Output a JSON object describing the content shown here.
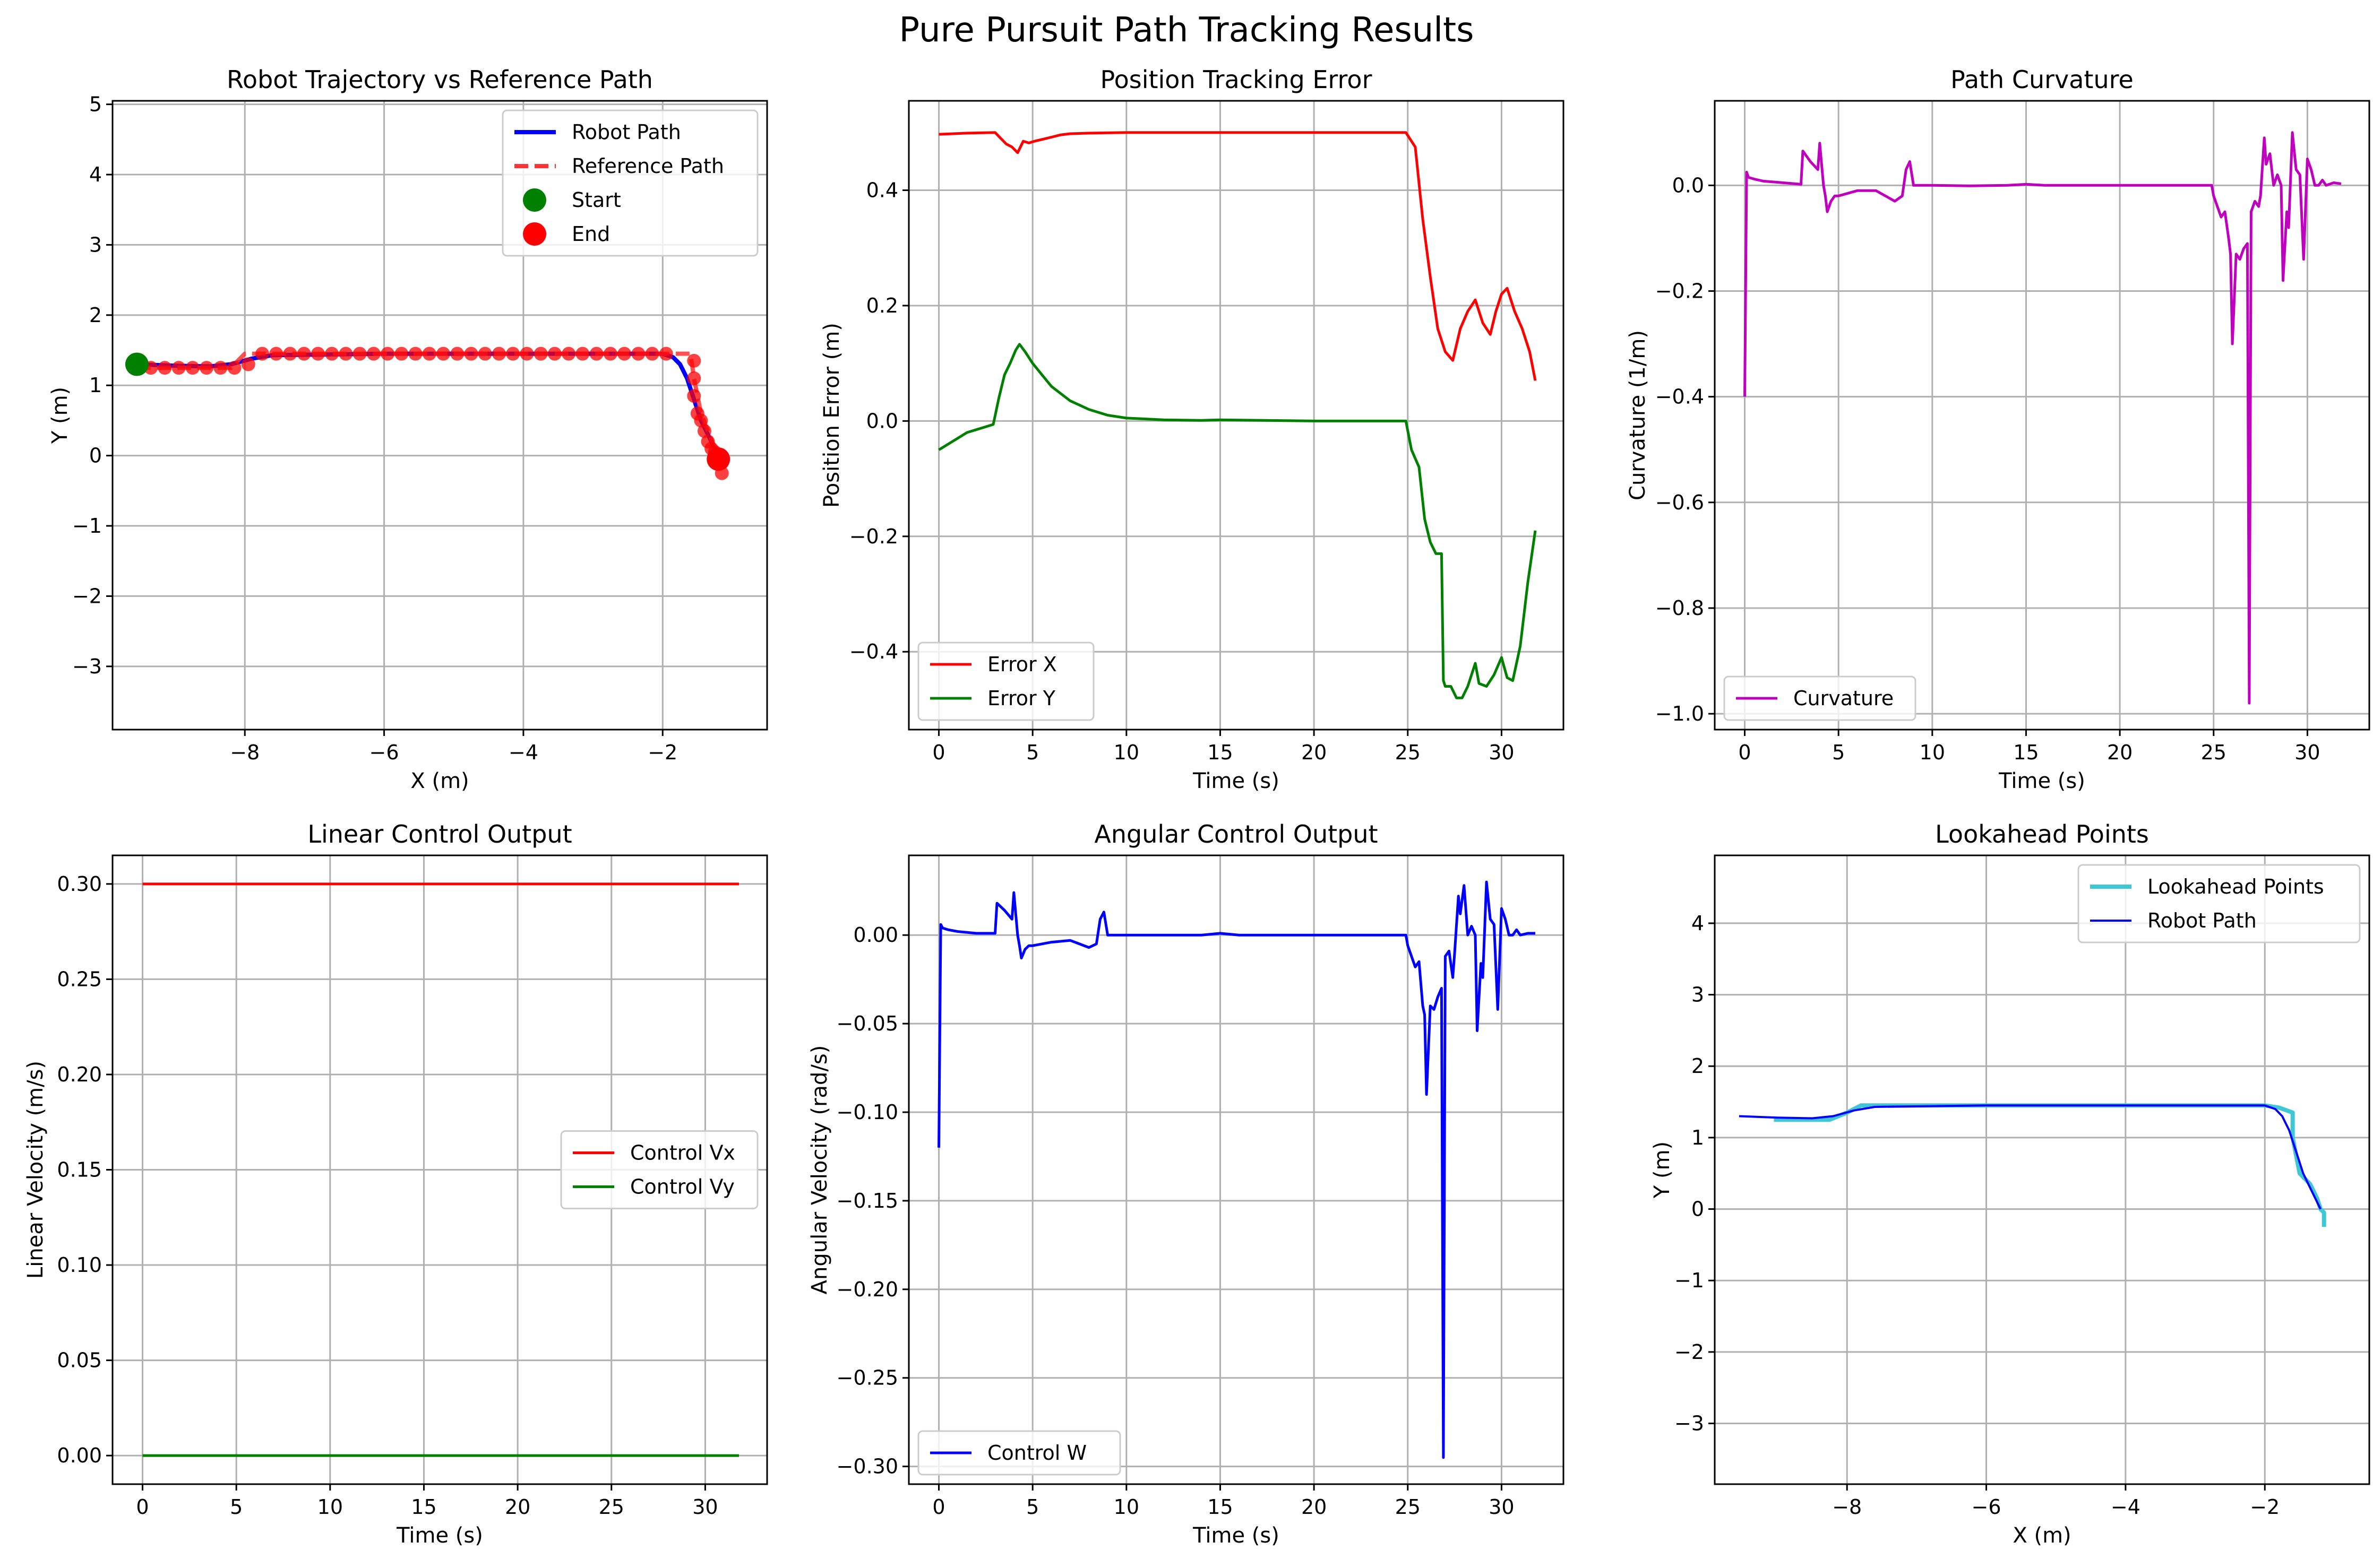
{
  "figure": {
    "title": "Pure Pursuit Path Tracking Results"
  },
  "colors": {
    "red": "#ff0000",
    "green": "#008000",
    "blue": "#0000ff",
    "magenta": "#bf00bf",
    "cyan": "#40c7d6",
    "refred": "#ff3333"
  },
  "chart_data": [
    {
      "id": "trajectory",
      "type": "line",
      "title": "Robot Trajectory vs Reference Path",
      "xlabel": "X (m)",
      "ylabel": "Y (m)",
      "xlim": [
        -9.9,
        -0.5
      ],
      "ylim": [
        -3.9,
        5.05
      ],
      "xticks": [
        -8,
        -6,
        -4,
        -2
      ],
      "xtick_labels": [
        "−8",
        "−6",
        "−4",
        "−2"
      ],
      "yticks": [
        -3,
        -2,
        -1,
        0,
        1,
        2,
        3,
        4,
        5
      ],
      "ytick_labels": [
        "−3",
        "−2",
        "−1",
        "0",
        "1",
        "2",
        "3",
        "4",
        "5"
      ],
      "grid": true,
      "legend": "top-right",
      "series": [
        {
          "name": "Robot Path",
          "style": "line",
          "color": "#0000ff",
          "width": 8,
          "x": [
            -9.55,
            -9.0,
            -8.5,
            -8.2,
            -7.9,
            -7.6,
            -6.0,
            -4.0,
            -2.5,
            -2.0,
            -1.85,
            -1.75,
            -1.65,
            -1.55,
            -1.45,
            -1.35,
            -1.25,
            -1.2
          ],
          "y": [
            1.3,
            1.28,
            1.27,
            1.3,
            1.38,
            1.43,
            1.45,
            1.45,
            1.45,
            1.45,
            1.4,
            1.3,
            1.1,
            0.8,
            0.5,
            0.3,
            0.1,
            0.0
          ]
        },
        {
          "name": "Reference Path",
          "style": "dashed",
          "color": "#ff3333",
          "width": 8,
          "x": [
            -9.55,
            -8.2,
            -8.0,
            -2.0,
            -1.6,
            -1.55,
            -1.45,
            -1.35,
            -1.25,
            -1.2
          ],
          "y": [
            1.25,
            1.25,
            1.45,
            1.45,
            1.45,
            1.1,
            0.6,
            0.35,
            0.1,
            -0.2
          ]
        },
        {
          "name": "ref-points",
          "style": "markers",
          "color": "#ff0000",
          "x": [
            -9.35,
            -9.15,
            -8.95,
            -8.75,
            -8.55,
            -8.35,
            -8.15,
            -7.95,
            -7.75,
            -7.55,
            -7.35,
            -7.15,
            -6.95,
            -6.75,
            -6.55,
            -6.35,
            -6.15,
            -5.95,
            -5.75,
            -5.55,
            -5.35,
            -5.15,
            -4.95,
            -4.75,
            -4.55,
            -4.35,
            -4.15,
            -3.95,
            -3.75,
            -3.55,
            -3.35,
            -3.15,
            -2.95,
            -2.75,
            -2.55,
            -2.35,
            -2.15,
            -1.95,
            -1.55,
            -1.55,
            -1.55,
            -1.5,
            -1.45,
            -1.4,
            -1.35,
            -1.3,
            -1.25,
            -1.2,
            -1.15,
            -1.2,
            -1.15
          ],
          "y": [
            1.25,
            1.25,
            1.25,
            1.25,
            1.25,
            1.25,
            1.25,
            1.3,
            1.45,
            1.45,
            1.45,
            1.45,
            1.45,
            1.45,
            1.45,
            1.45,
            1.45,
            1.45,
            1.45,
            1.45,
            1.45,
            1.45,
            1.45,
            1.45,
            1.45,
            1.45,
            1.45,
            1.45,
            1.45,
            1.45,
            1.45,
            1.45,
            1.45,
            1.45,
            1.45,
            1.45,
            1.45,
            1.45,
            1.35,
            1.1,
            0.85,
            0.6,
            0.5,
            0.35,
            0.2,
            0.1,
            0.05,
            -0.05,
            -0.1,
            0.0,
            -0.25
          ]
        },
        {
          "name": "Start",
          "style": "point",
          "color": "#008000",
          "x": [
            -9.55
          ],
          "y": [
            1.3
          ]
        },
        {
          "name": "End",
          "style": "point",
          "color": "#ff0000",
          "x": [
            -1.2
          ],
          "y": [
            -0.05
          ]
        }
      ],
      "legend_entries": [
        "Robot Path",
        "Reference Path",
        "Start",
        "End"
      ]
    },
    {
      "id": "position-error",
      "type": "line",
      "title": "Position Tracking Error",
      "xlabel": "Time (s)",
      "ylabel": "Position Error (m)",
      "xlim": [
        -1.6,
        33.3
      ],
      "ylim": [
        -0.535,
        0.555
      ],
      "xticks": [
        0,
        5,
        10,
        15,
        20,
        25,
        30
      ],
      "xtick_labels": [
        "0",
        "5",
        "10",
        "15",
        "20",
        "25",
        "30"
      ],
      "yticks": [
        -0.4,
        -0.2,
        0.0,
        0.2,
        0.4
      ],
      "ytick_labels": [
        "−0.4",
        "−0.2",
        "0.0",
        "0.2",
        "0.4"
      ],
      "grid": true,
      "legend": "bottom-left",
      "series": [
        {
          "name": "Error X",
          "color": "#ff0000",
          "width": 5,
          "x": [
            0,
            1.5,
            3.0,
            3.3,
            3.6,
            3.9,
            4.2,
            4.5,
            4.8,
            5.1,
            5.5,
            6.0,
            6.5,
            7.0,
            8.0,
            10,
            15,
            20,
            24.9,
            25.4,
            25.8,
            26.2,
            26.6,
            27.0,
            27.4,
            27.8,
            28.2,
            28.6,
            29.0,
            29.4,
            29.7,
            30.0,
            30.3,
            30.7,
            31.1,
            31.5,
            31.8
          ],
          "y": [
            0.497,
            0.499,
            0.5,
            0.49,
            0.48,
            0.475,
            0.465,
            0.485,
            0.482,
            0.485,
            0.488,
            0.492,
            0.496,
            0.498,
            0.499,
            0.5,
            0.5,
            0.5,
            0.5,
            0.475,
            0.35,
            0.25,
            0.16,
            0.12,
            0.105,
            0.16,
            0.19,
            0.21,
            0.17,
            0.15,
            0.19,
            0.22,
            0.23,
            0.19,
            0.16,
            0.12,
            0.07
          ]
        },
        {
          "name": "Error Y",
          "color": "#008000",
          "width": 5,
          "x": [
            0,
            0.5,
            1.0,
            1.5,
            2.0,
            2.5,
            2.9,
            3.2,
            3.5,
            3.8,
            4.1,
            4.3,
            4.6,
            5.0,
            5.5,
            6.0,
            7.0,
            8.0,
            9.0,
            10,
            12,
            14,
            15,
            20,
            24.9,
            25.2,
            25.6,
            25.9,
            26.2,
            26.5,
            26.8,
            26.9,
            27.0,
            27.3,
            27.6,
            27.9,
            28.2,
            28.6,
            28.8,
            29.2,
            29.6,
            30.0,
            30.3,
            30.6,
            31.0,
            31.4,
            31.8
          ],
          "y": [
            -0.05,
            -0.04,
            -0.03,
            -0.02,
            -0.015,
            -0.01,
            -0.006,
            0.04,
            0.08,
            0.1,
            0.123,
            0.133,
            0.12,
            0.1,
            0.08,
            0.06,
            0.035,
            0.02,
            0.01,
            0.005,
            0.002,
            0.001,
            0.002,
            0.0,
            0.0,
            -0.05,
            -0.08,
            -0.17,
            -0.21,
            -0.23,
            -0.23,
            -0.45,
            -0.46,
            -0.46,
            -0.48,
            -0.48,
            -0.46,
            -0.42,
            -0.455,
            -0.46,
            -0.44,
            -0.41,
            -0.445,
            -0.45,
            -0.39,
            -0.28,
            -0.19
          ]
        }
      ],
      "legend_entries": [
        "Error X",
        "Error Y"
      ]
    },
    {
      "id": "curvature",
      "type": "line",
      "title": "Path Curvature",
      "xlabel": "Time (s)",
      "ylabel": "Curvature (1/m)",
      "xlim": [
        -1.6,
        33.3
      ],
      "ylim": [
        -1.03,
        0.16
      ],
      "xticks": [
        0,
        5,
        10,
        15,
        20,
        25,
        30
      ],
      "xtick_labels": [
        "0",
        "5",
        "10",
        "15",
        "20",
        "25",
        "30"
      ],
      "yticks": [
        -1.0,
        -0.8,
        -0.6,
        -0.4,
        -0.2,
        0.0
      ],
      "ytick_labels": [
        "−1.0",
        "−0.8",
        "−0.6",
        "−0.4",
        "−0.2",
        "0.0"
      ],
      "grid": true,
      "legend": "bottom-left",
      "series": [
        {
          "name": "Curvature",
          "color": "#bf00bf",
          "width": 5,
          "x": [
            0,
            0.1,
            0.2,
            0.5,
            1,
            2,
            3,
            3.1,
            3.5,
            3.9,
            4.0,
            4.2,
            4.3,
            4.4,
            4.6,
            4.8,
            5,
            6,
            7,
            7.5,
            8.0,
            8.4,
            8.6,
            8.8,
            9.0,
            10,
            12,
            14,
            15,
            16,
            20,
            24.9,
            25,
            25.4,
            25.6,
            25.8,
            25.9,
            26.0,
            26.2,
            26.4,
            26.6,
            26.8,
            26.9,
            27.0,
            27.2,
            27.4,
            27.5,
            27.7,
            27.8,
            28.0,
            28.2,
            28.4,
            28.6,
            28.7,
            28.9,
            29.0,
            29.2,
            29.4,
            29.6,
            29.8,
            30.0,
            30.2,
            30.4,
            30.6,
            30.8,
            31.0,
            31.4,
            31.8
          ],
          "y": [
            -0.4,
            0.025,
            0.015,
            0.012,
            0.008,
            0.005,
            0.002,
            0.065,
            0.045,
            0.03,
            0.08,
            0.0,
            -0.02,
            -0.05,
            -0.03,
            -0.02,
            -0.02,
            -0.01,
            -0.01,
            -0.02,
            -0.03,
            -0.02,
            0.03,
            0.045,
            0.0,
            0.0,
            -0.001,
            0.0,
            0.002,
            0.0,
            0.0,
            0.0,
            -0.02,
            -0.06,
            -0.05,
            -0.1,
            -0.13,
            -0.3,
            -0.13,
            -0.14,
            -0.12,
            -0.11,
            -0.98,
            -0.05,
            -0.03,
            -0.04,
            -0.02,
            0.09,
            0.04,
            0.06,
            0.0,
            0.02,
            0.0,
            -0.18,
            -0.05,
            -0.08,
            0.1,
            0.03,
            0.02,
            -0.14,
            0.05,
            0.03,
            0.0,
            0.0,
            0.01,
            0.0,
            0.005,
            0.003
          ]
        }
      ],
      "legend_entries": [
        "Curvature"
      ]
    },
    {
      "id": "linear-control",
      "type": "line",
      "title": "Linear Control Output",
      "xlabel": "Time (s)",
      "ylabel": "Linear Velocity (m/s)",
      "xlim": [
        -1.6,
        33.3
      ],
      "ylim": [
        -0.015,
        0.315
      ],
      "xticks": [
        0,
        5,
        10,
        15,
        20,
        25,
        30
      ],
      "xtick_labels": [
        "0",
        "5",
        "10",
        "15",
        "20",
        "25",
        "30"
      ],
      "yticks": [
        0.0,
        0.05,
        0.1,
        0.15,
        0.2,
        0.25,
        0.3
      ],
      "ytick_labels": [
        "0.00",
        "0.05",
        "0.10",
        "0.15",
        "0.20",
        "0.25",
        "0.30"
      ],
      "grid": true,
      "legend": "center-right",
      "series": [
        {
          "name": "Control Vx",
          "color": "#ff0000",
          "width": 5,
          "x": [
            0,
            31.8
          ],
          "y": [
            0.3,
            0.3
          ]
        },
        {
          "name": "Control Vy",
          "color": "#008000",
          "width": 5,
          "x": [
            0,
            31.8
          ],
          "y": [
            0.0,
            0.0
          ]
        }
      ],
      "legend_entries": [
        "Control Vx",
        "Control Vy"
      ]
    },
    {
      "id": "angular-control",
      "type": "line",
      "title": "Angular Control Output",
      "xlabel": "Time (s)",
      "ylabel": "Angular Velocity (rad/s)",
      "xlim": [
        -1.6,
        33.3
      ],
      "ylim": [
        -0.31,
        0.045
      ],
      "xticks": [
        0,
        5,
        10,
        15,
        20,
        25,
        30
      ],
      "xtick_labels": [
        "0",
        "5",
        "10",
        "15",
        "20",
        "25",
        "30"
      ],
      "yticks": [
        -0.3,
        -0.25,
        -0.2,
        -0.15,
        -0.1,
        -0.05,
        0.0
      ],
      "ytick_labels": [
        "−0.30",
        "−0.25",
        "−0.20",
        "−0.15",
        "−0.10",
        "−0.05",
        "0.00"
      ],
      "grid": true,
      "legend": "bottom-left",
      "series": [
        {
          "name": "Control W",
          "color": "#0000ff",
          "width": 5,
          "x": [
            0,
            0.1,
            0.2,
            0.5,
            1,
            2,
            3,
            3.1,
            3.5,
            3.9,
            4.0,
            4.2,
            4.3,
            4.4,
            4.6,
            4.8,
            5,
            6,
            7,
            7.5,
            8.0,
            8.4,
            8.6,
            8.8,
            9.0,
            10,
            12,
            14,
            15,
            16,
            20,
            24.9,
            25,
            25.4,
            25.6,
            25.8,
            25.9,
            26.0,
            26.2,
            26.4,
            26.6,
            26.8,
            26.9,
            27.0,
            27.2,
            27.4,
            27.5,
            27.7,
            27.8,
            28.0,
            28.2,
            28.4,
            28.6,
            28.7,
            28.9,
            29.0,
            29.2,
            29.4,
            29.6,
            29.8,
            30.0,
            30.2,
            30.4,
            30.6,
            30.8,
            31.0,
            31.4,
            31.8
          ],
          "y": [
            -0.12,
            0.006,
            0.004,
            0.003,
            0.002,
            0.001,
            0.001,
            0.018,
            0.014,
            0.009,
            0.024,
            0.0,
            -0.006,
            -0.013,
            -0.008,
            -0.006,
            -0.006,
            -0.004,
            -0.003,
            -0.005,
            -0.007,
            -0.005,
            0.009,
            0.013,
            0.0,
            0.0,
            0.0,
            0.0,
            0.001,
            0.0,
            0.0,
            0.0,
            -0.006,
            -0.018,
            -0.015,
            -0.04,
            -0.045,
            -0.09,
            -0.04,
            -0.042,
            -0.035,
            -0.03,
            -0.295,
            -0.012,
            -0.009,
            -0.024,
            -0.01,
            0.022,
            0.012,
            0.028,
            0.0,
            0.005,
            0.0,
            -0.054,
            -0.016,
            -0.024,
            0.03,
            0.009,
            0.006,
            -0.042,
            0.015,
            0.009,
            0.0,
            0.0,
            0.003,
            0.0,
            0.001,
            0.001
          ]
        }
      ],
      "legend_entries": [
        "Control W"
      ]
    },
    {
      "id": "lookahead",
      "type": "line",
      "title": "Lookahead Points",
      "xlabel": "X (m)",
      "ylabel": "Y (m)",
      "xlim": [
        -9.9,
        -0.5
      ],
      "ylim": [
        -3.85,
        4.95
      ],
      "xticks": [
        -8,
        -6,
        -4,
        -2
      ],
      "xtick_labels": [
        "−8",
        "−6",
        "−4",
        "−2"
      ],
      "yticks": [
        -3,
        -2,
        -1,
        0,
        1,
        2,
        3,
        4
      ],
      "ytick_labels": [
        "−3",
        "−2",
        "−1",
        "0",
        "1",
        "2",
        "3",
        "4"
      ],
      "grid": true,
      "legend": "top-right",
      "series": [
        {
          "name": "Lookahead Points",
          "color": "#40c7d6",
          "width": 8,
          "x": [
            -9.05,
            -8.25,
            -8.0,
            -7.8,
            -2.0,
            -1.8,
            -1.6,
            -1.6,
            -1.5,
            -1.45,
            -1.35,
            -1.25,
            -1.2,
            -1.15,
            -1.15
          ],
          "y": [
            1.25,
            1.25,
            1.35,
            1.45,
            1.45,
            1.42,
            1.35,
            1.0,
            0.5,
            0.45,
            0.35,
            0.15,
            0.0,
            -0.05,
            -0.25
          ]
        },
        {
          "name": "Robot Path",
          "color": "#0000ff",
          "width": 4,
          "x": [
            -9.55,
            -9.0,
            -8.5,
            -8.2,
            -7.9,
            -7.6,
            -6.0,
            -4.0,
            -2.5,
            -2.0,
            -1.85,
            -1.75,
            -1.65,
            -1.55,
            -1.45,
            -1.35,
            -1.25,
            -1.2
          ],
          "y": [
            1.3,
            1.28,
            1.27,
            1.3,
            1.38,
            1.43,
            1.45,
            1.45,
            1.45,
            1.45,
            1.4,
            1.3,
            1.1,
            0.8,
            0.5,
            0.3,
            0.1,
            0.0
          ]
        }
      ],
      "legend_entries": [
        "Lookahead Points",
        "Robot Path"
      ]
    }
  ]
}
